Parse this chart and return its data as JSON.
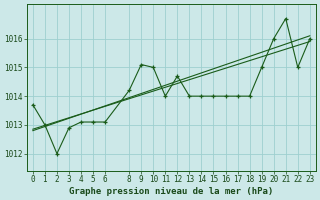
{
  "title": "Graphe pression niveau de la mer (hPa)",
  "bg_color": "#cce8e8",
  "grid_color": "#9ecfcf",
  "line_color": "#1a5c1a",
  "x_ticks": [
    0,
    1,
    2,
    3,
    4,
    5,
    6,
    8,
    9,
    10,
    11,
    12,
    13,
    14,
    15,
    16,
    17,
    18,
    19,
    20,
    21,
    22,
    23
  ],
  "ylim": [
    1011.4,
    1017.2
  ],
  "yticks": [
    1012,
    1013,
    1014,
    1015,
    1016
  ],
  "series1": {
    "x": [
      0,
      1,
      2,
      3,
      4,
      5,
      6,
      8,
      9,
      10,
      11,
      12,
      13,
      14,
      15,
      16,
      17,
      18,
      19,
      20,
      21,
      22,
      23
    ],
    "y": [
      1013.7,
      1013.0,
      1012.0,
      1012.9,
      1013.1,
      1013.1,
      1013.1,
      1014.2,
      1015.1,
      1015.0,
      1014.0,
      1014.7,
      1014.0,
      1014.0,
      1014.0,
      1014.0,
      1014.0,
      1014.0,
      1015.0,
      1016.0,
      1016.7,
      1015.0,
      1016.0
    ]
  },
  "trend1_x": [
    0,
    23
  ],
  "trend1_y": [
    1012.8,
    1016.1
  ],
  "trend2_x": [
    0,
    23
  ],
  "trend2_y": [
    1012.85,
    1015.9
  ],
  "title_fontsize": 6.5,
  "tick_fontsize": 5.5
}
